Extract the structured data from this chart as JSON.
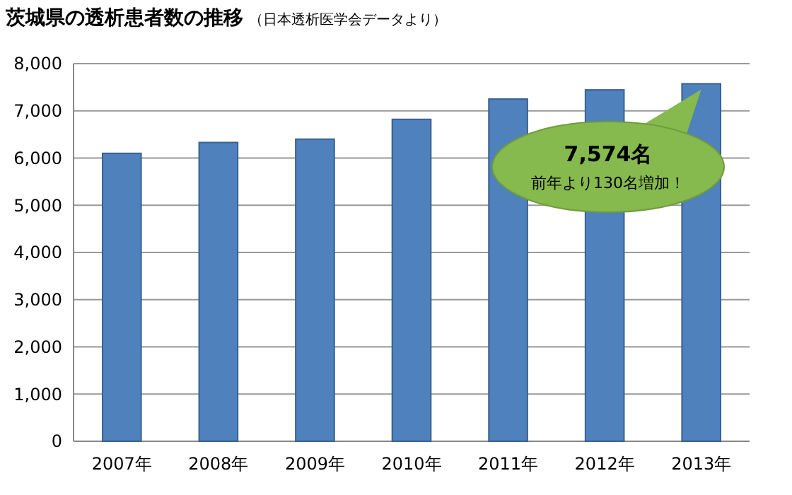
{
  "chart_data": {
    "type": "bar",
    "title": "茨城県の透析患者数の推移",
    "subtitle": "（日本透析医学会データより）",
    "categories": [
      "2007年",
      "2008年",
      "2009年",
      "2010年",
      "2011年",
      "2012年",
      "2013年"
    ],
    "values": [
      6100,
      6330,
      6400,
      6820,
      7250,
      7444,
      7574
    ],
    "color": "#4f81bd",
    "ylim": [
      0,
      8000
    ],
    "yticks": [
      {
        "value": 0,
        "label": "0"
      },
      {
        "value": 1000,
        "label": "1,000"
      },
      {
        "value": 2000,
        "label": "2,000"
      },
      {
        "value": 3000,
        "label": "3,000"
      },
      {
        "value": 4000,
        "label": "4,000"
      },
      {
        "value": 5000,
        "label": "5,000"
      },
      {
        "value": 6000,
        "label": "6,000"
      },
      {
        "value": 7000,
        "label": "7,000"
      },
      {
        "value": 8000,
        "label": "8,000"
      }
    ],
    "grid": true,
    "annotations": [
      "7,574名",
      "前年より130名増加！"
    ]
  }
}
